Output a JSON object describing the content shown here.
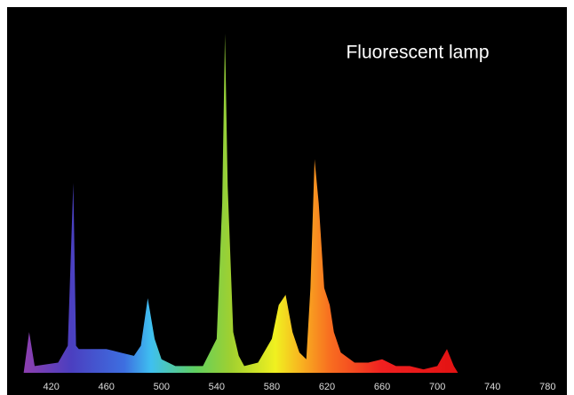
{
  "chart_data": {
    "type": "area",
    "title": "Fluorescent lamp",
    "x": [
      400,
      404,
      408,
      425,
      432,
      436,
      438,
      440,
      450,
      460,
      470,
      480,
      485,
      490,
      495,
      500,
      510,
      530,
      540,
      544,
      546,
      548,
      552,
      556,
      560,
      570,
      580,
      585,
      590,
      595,
      600,
      605,
      608,
      611,
      614,
      618,
      622,
      625,
      630,
      640,
      650,
      660,
      670,
      680,
      690,
      700,
      707,
      712,
      715,
      720,
      780
    ],
    "values": [
      0,
      12,
      2,
      3,
      8,
      56,
      8,
      7,
      7,
      7,
      6,
      5,
      8,
      22,
      10,
      4,
      2,
      2,
      10,
      50,
      100,
      55,
      12,
      5,
      2,
      3,
      10,
      20,
      23,
      12,
      6,
      4,
      25,
      63,
      50,
      25,
      20,
      12,
      6,
      3,
      3,
      4,
      2,
      2,
      1,
      2,
      7,
      2,
      0,
      0,
      0
    ],
    "xlim": [
      388,
      794
    ],
    "ylim": [
      0,
      100
    ],
    "xticks": [
      420,
      460,
      500,
      540,
      580,
      620,
      660,
      700,
      740,
      780
    ]
  }
}
